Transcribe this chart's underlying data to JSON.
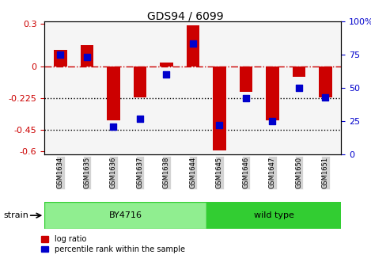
{
  "title": "GDS94 / 6099",
  "samples": [
    "GSM1634",
    "GSM1635",
    "GSM1636",
    "GSM1637",
    "GSM1638",
    "GSM1644",
    "GSM1645",
    "GSM1646",
    "GSM1647",
    "GSM1650",
    "GSM1651"
  ],
  "log_ratio": [
    0.12,
    0.15,
    -0.38,
    -0.22,
    0.03,
    0.29,
    -0.59,
    -0.18,
    -0.38,
    -0.07,
    -0.22
  ],
  "percentile_rank": [
    75,
    73,
    21,
    27,
    60,
    83,
    22,
    42,
    25,
    50,
    43
  ],
  "groups": [
    {
      "label": "BY4716",
      "start": 0,
      "end": 5,
      "color": "#90ee90"
    },
    {
      "label": "wild type",
      "start": 5,
      "end": 10,
      "color": "#32cd32"
    }
  ],
  "ylim": [
    -0.62,
    0.32
  ],
  "yticks_left": [
    0.3,
    0,
    -0.225,
    -0.45,
    -0.6
  ],
  "yticks_right": [
    100,
    75,
    50,
    25,
    0
  ],
  "hlines": [
    -0.225,
    -0.45
  ],
  "hline_zero": 0,
  "bar_color": "#cc0000",
  "dot_color": "#0000cc",
  "bar_width": 0.5,
  "dot_size": 30,
  "background_color": "#f5f5f5",
  "strain_label": "strain",
  "legend_items": [
    "log ratio",
    "percentile rank within the sample"
  ],
  "percentile_scale": 100
}
